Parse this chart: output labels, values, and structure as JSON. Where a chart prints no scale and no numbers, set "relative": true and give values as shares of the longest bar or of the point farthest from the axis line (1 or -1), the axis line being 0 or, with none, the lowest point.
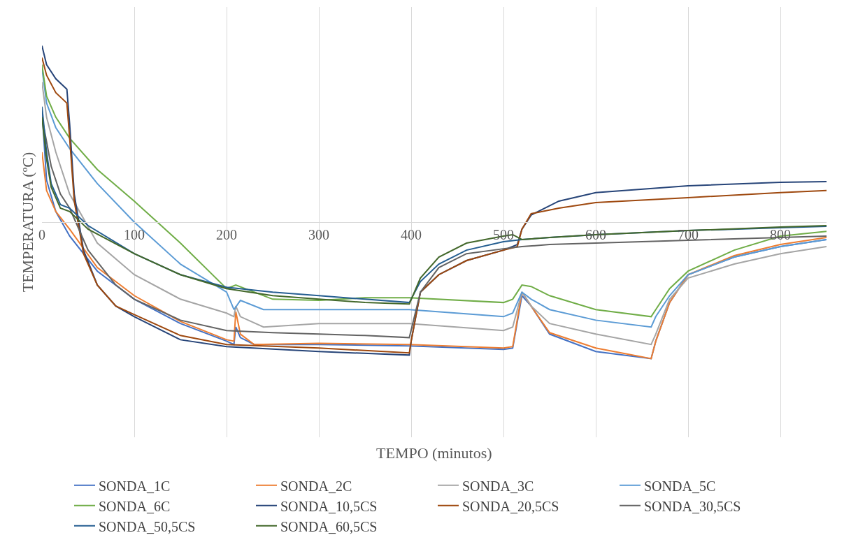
{
  "chart_data": {
    "type": "line",
    "relative": true,
    "annotations": [
      "TEMPO (minutos)"
    ],
    "ylabel": "TEMPERATURA (ºC)",
    "xlim": [
      0,
      850
    ],
    "xticks": [
      0,
      100,
      200,
      300,
      400,
      500,
      600,
      700,
      800
    ],
    "grid": "x",
    "legend": "bottom",
    "marker": "none",
    "line_style": "solid",
    "series": [
      {
        "name": "SONDA_1C",
        "color": "#4472c4",
        "x": [
          0,
          5,
          15,
          30,
          60,
          100,
          150,
          200,
          208,
          210,
          215,
          230,
          300,
          398,
          500,
          510,
          520,
          530,
          550,
          600,
          660,
          665,
          680,
          700,
          750,
          800,
          850
        ],
        "values": [
          0.635,
          0.238,
          0.06,
          -0.079,
          -0.278,
          -0.437,
          -0.575,
          -0.675,
          -0.694,
          -0.595,
          -0.655,
          -0.694,
          -0.694,
          -0.702,
          -0.722,
          -0.714,
          -0.417,
          -0.476,
          -0.635,
          -0.734,
          -0.774,
          -0.675,
          -0.456,
          -0.298,
          -0.198,
          -0.139,
          -0.099
        ]
      },
      {
        "name": "SONDA_2C",
        "color": "#ed7d31",
        "x": [
          0,
          5,
          15,
          30,
          60,
          100,
          150,
          200,
          208,
          210,
          215,
          230,
          300,
          398,
          500,
          510,
          520,
          530,
          550,
          600,
          660,
          665,
          680,
          700,
          750,
          800,
          850
        ],
        "values": [
          0.397,
          0.179,
          0.06,
          -0.04,
          -0.258,
          -0.417,
          -0.563,
          -0.667,
          -0.675,
          -0.508,
          -0.635,
          -0.694,
          -0.687,
          -0.694,
          -0.714,
          -0.706,
          -0.397,
          -0.476,
          -0.627,
          -0.714,
          -0.774,
          -0.675,
          -0.456,
          -0.298,
          -0.19,
          -0.127,
          -0.087
        ]
      },
      {
        "name": "SONDA_3C",
        "color": "#a5a5a5",
        "x": [
          0,
          5,
          15,
          30,
          60,
          100,
          150,
          200,
          208,
          210,
          215,
          240,
          300,
          398,
          500,
          510,
          520,
          530,
          550,
          600,
          660,
          665,
          680,
          700,
          750,
          800,
          850
        ],
        "values": [
          0.794,
          0.595,
          0.397,
          0.159,
          -0.119,
          -0.298,
          -0.437,
          -0.516,
          -0.536,
          -0.476,
          -0.536,
          -0.595,
          -0.575,
          -0.575,
          -0.615,
          -0.595,
          -0.397,
          -0.476,
          -0.575,
          -0.635,
          -0.694,
          -0.635,
          -0.437,
          -0.317,
          -0.238,
          -0.179,
          -0.139
        ]
      },
      {
        "name": "SONDA_5C",
        "color": "#5b9bd5",
        "x": [
          0,
          5,
          15,
          30,
          60,
          100,
          150,
          200,
          208,
          215,
          240,
          300,
          398,
          500,
          510,
          520,
          530,
          550,
          600,
          660,
          665,
          680,
          700,
          750,
          800,
          850
        ],
        "values": [
          0.873,
          0.675,
          0.536,
          0.417,
          0.218,
          0.0,
          -0.238,
          -0.397,
          -0.496,
          -0.444,
          -0.496,
          -0.496,
          -0.496,
          -0.536,
          -0.516,
          -0.397,
          -0.437,
          -0.496,
          -0.556,
          -0.595,
          -0.536,
          -0.417,
          -0.298,
          -0.198,
          -0.139,
          -0.099
        ]
      },
      {
        "name": "SONDA_6C",
        "color": "#70ad47",
        "x": [
          0,
          5,
          15,
          30,
          60,
          100,
          150,
          200,
          210,
          220,
          250,
          300,
          350,
          398,
          500,
          510,
          520,
          530,
          550,
          600,
          660,
          665,
          680,
          700,
          750,
          800,
          850
        ],
        "values": [
          0.893,
          0.714,
          0.595,
          0.476,
          0.298,
          0.119,
          -0.119,
          -0.377,
          -0.357,
          -0.377,
          -0.437,
          -0.444,
          -0.429,
          -0.429,
          -0.456,
          -0.437,
          -0.357,
          -0.365,
          -0.417,
          -0.496,
          -0.536,
          -0.496,
          -0.377,
          -0.278,
          -0.159,
          -0.079,
          -0.052
        ]
      },
      {
        "name": "SONDA_10,5CS",
        "color": "#264478",
        "x": [
          0,
          5,
          15,
          27,
          30,
          35,
          45,
          60,
          80,
          100,
          150,
          200,
          300,
          398,
          400,
          410,
          430,
          460,
          500,
          515,
          520,
          530,
          560,
          600,
          700,
          800,
          850
        ],
        "values": [
          1.0,
          0.893,
          0.813,
          0.754,
          0.556,
          0.159,
          -0.159,
          -0.357,
          -0.476,
          -0.536,
          -0.667,
          -0.706,
          -0.734,
          -0.754,
          -0.675,
          -0.397,
          -0.298,
          -0.218,
          -0.159,
          -0.127,
          -0.04,
          0.04,
          0.119,
          0.167,
          0.206,
          0.226,
          0.23
        ]
      },
      {
        "name": "SONDA_20,5CS",
        "color": "#9e480e",
        "x": [
          0,
          5,
          15,
          27,
          30,
          35,
          45,
          60,
          80,
          100,
          150,
          200,
          300,
          398,
          400,
          410,
          430,
          460,
          500,
          515,
          520,
          530,
          560,
          600,
          700,
          800,
          850
        ],
        "values": [
          0.933,
          0.833,
          0.734,
          0.675,
          0.476,
          0.119,
          -0.179,
          -0.357,
          -0.476,
          -0.524,
          -0.643,
          -0.694,
          -0.714,
          -0.742,
          -0.675,
          -0.397,
          -0.298,
          -0.218,
          -0.159,
          -0.139,
          -0.04,
          0.048,
          0.079,
          0.111,
          0.139,
          0.167,
          0.179
        ]
      },
      {
        "name": "SONDA_30,5CS",
        "color": "#636363",
        "x": [
          0,
          10,
          20,
          30,
          50,
          80,
          100,
          150,
          200,
          250,
          300,
          350,
          398,
          410,
          430,
          460,
          500,
          520,
          550,
          600,
          700,
          800,
          850
        ],
        "values": [
          0.595,
          0.317,
          0.159,
          0.079,
          -0.159,
          -0.357,
          -0.437,
          -0.556,
          -0.615,
          -0.627,
          -0.635,
          -0.643,
          -0.655,
          -0.397,
          -0.258,
          -0.179,
          -0.151,
          -0.139,
          -0.127,
          -0.119,
          -0.103,
          -0.087,
          -0.079
        ]
      },
      {
        "name": "SONDA_50,5CS",
        "color": "#255e91",
        "x": [
          0,
          5,
          10,
          20,
          30,
          50,
          100,
          150,
          200,
          250,
          300,
          350,
          398,
          410,
          430,
          460,
          500,
          520,
          550,
          600,
          700,
          800,
          850
        ],
        "values": [
          0.655,
          0.397,
          0.218,
          0.099,
          0.079,
          -0.02,
          -0.179,
          -0.298,
          -0.369,
          -0.397,
          -0.417,
          -0.437,
          -0.456,
          -0.337,
          -0.238,
          -0.159,
          -0.111,
          -0.099,
          -0.087,
          -0.071,
          -0.048,
          -0.032,
          -0.024
        ]
      },
      {
        "name": "SONDA_60,5CS",
        "color": "#43682b",
        "x": [
          0,
          5,
          10,
          20,
          30,
          50,
          100,
          150,
          200,
          250,
          300,
          350,
          398,
          410,
          430,
          460,
          500,
          510,
          520,
          550,
          600,
          700,
          800,
          850
        ],
        "values": [
          0.595,
          0.357,
          0.198,
          0.079,
          0.06,
          -0.04,
          -0.179,
          -0.298,
          -0.377,
          -0.417,
          -0.437,
          -0.456,
          -0.464,
          -0.317,
          -0.198,
          -0.119,
          -0.079,
          -0.071,
          -0.099,
          -0.087,
          -0.071,
          -0.048,
          -0.028,
          -0.02
        ]
      }
    ]
  }
}
